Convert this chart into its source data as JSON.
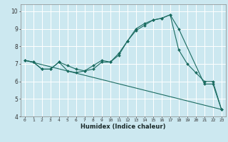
{
  "title": "",
  "xlabel": "Humidex (Indice chaleur)",
  "bg_color": "#cce8f0",
  "grid_color": "#ffffff",
  "line_color": "#1a6b60",
  "xlim": [
    -0.5,
    23.5
  ],
  "ylim": [
    4.0,
    10.4
  ],
  "yticks": [
    4,
    5,
    6,
    7,
    8,
    9,
    10
  ],
  "xticks": [
    0,
    1,
    2,
    3,
    4,
    5,
    6,
    7,
    8,
    9,
    10,
    11,
    12,
    13,
    14,
    15,
    16,
    17,
    18,
    19,
    20,
    21,
    22,
    23
  ],
  "line1_x": [
    0,
    1,
    2,
    3,
    4,
    5,
    6,
    7,
    8,
    9,
    10,
    11,
    12,
    13,
    14,
    15,
    16,
    17,
    18,
    21,
    22,
    23
  ],
  "line1_y": [
    7.2,
    7.1,
    6.7,
    6.7,
    7.1,
    6.6,
    6.5,
    6.6,
    6.7,
    7.1,
    7.1,
    7.5,
    8.3,
    9.0,
    9.3,
    9.5,
    9.6,
    9.8,
    9.0,
    5.85,
    5.85,
    4.4
  ],
  "line2_x": [
    0,
    1,
    2,
    3,
    4,
    5,
    6,
    7,
    8,
    9,
    10,
    11,
    12,
    13,
    14,
    15,
    16,
    17,
    18,
    19,
    20,
    21,
    22,
    23
  ],
  "line2_y": [
    7.2,
    7.1,
    6.7,
    6.7,
    7.1,
    6.9,
    6.7,
    6.6,
    6.9,
    7.2,
    7.1,
    7.6,
    8.3,
    8.9,
    9.2,
    9.5,
    9.6,
    9.8,
    7.8,
    7.0,
    6.5,
    6.0,
    6.0,
    4.4
  ],
  "line3_x": [
    0,
    23
  ],
  "line3_y": [
    7.2,
    4.4
  ],
  "ytick_fontsize": 5.5,
  "xtick_fontsize": 4.5,
  "xlabel_fontsize": 6.0
}
